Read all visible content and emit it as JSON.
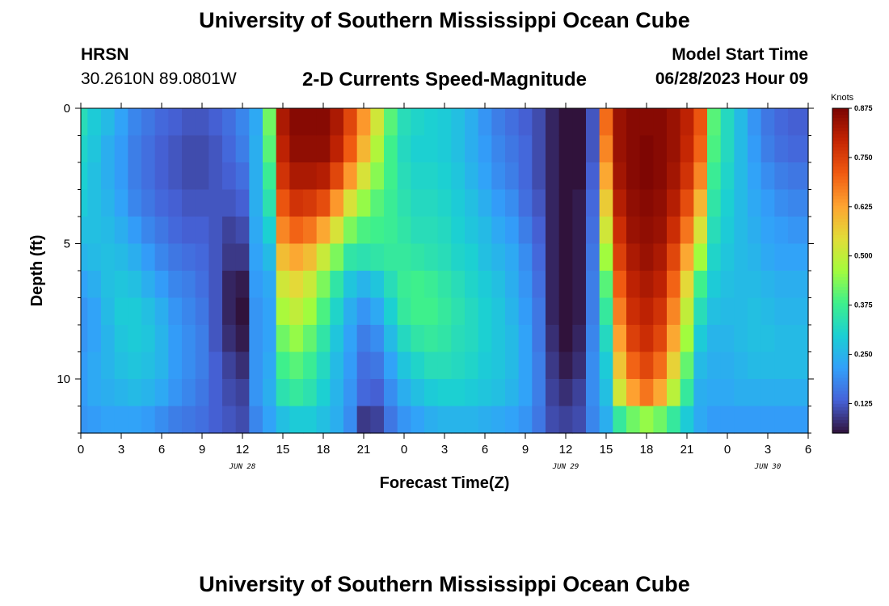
{
  "header": {
    "title": "University of Southern Mississippi Ocean Cube",
    "station_id": "HRSN",
    "coordinates": "30.2610N  89.0801W",
    "subtitle": "2-D Currents Speed-Magnitude",
    "model_start_label": "Model Start Time",
    "model_start_value": "06/28/2023 Hour 09"
  },
  "footer": {
    "repeat_title": "University of Southern Mississippi Ocean Cube"
  },
  "chart_data": {
    "type": "heatmap",
    "title": "2-D Currents Speed-Magnitude",
    "xlabel": "Forecast Time(Z)",
    "ylabel": "Depth (ft)",
    "colorbar_label": "Knots",
    "x_range_hours": [
      0,
      54
    ],
    "x_ticks": [
      {
        "hour": 0,
        "label": "0"
      },
      {
        "hour": 3,
        "label": "3"
      },
      {
        "hour": 6,
        "label": "6"
      },
      {
        "hour": 9,
        "label": "9"
      },
      {
        "hour": 12,
        "label": "12"
      },
      {
        "hour": 15,
        "label": "15"
      },
      {
        "hour": 18,
        "label": "18"
      },
      {
        "hour": 21,
        "label": "21"
      },
      {
        "hour": 24,
        "label": "0"
      },
      {
        "hour": 27,
        "label": "3"
      },
      {
        "hour": 30,
        "label": "6"
      },
      {
        "hour": 33,
        "label": "9"
      },
      {
        "hour": 36,
        "label": "12"
      },
      {
        "hour": 39,
        "label": "15"
      },
      {
        "hour": 42,
        "label": "18"
      },
      {
        "hour": 45,
        "label": "21"
      },
      {
        "hour": 48,
        "label": "0"
      },
      {
        "hour": 51,
        "label": "3"
      },
      {
        "hour": 54,
        "label": "6"
      }
    ],
    "date_labels": [
      {
        "hour": 12,
        "label": "JUN 28"
      },
      {
        "hour": 36,
        "label": "JUN 29"
      },
      {
        "hour": 51,
        "label": "JUN 30"
      }
    ],
    "y_range": [
      0,
      12
    ],
    "y_ticks": [
      0,
      5,
      10
    ],
    "colorbar": {
      "min": 0.05,
      "max": 0.875,
      "ticks": [
        0.125,
        0.25,
        0.375,
        0.5,
        0.625,
        0.75,
        0.875
      ],
      "tick_labels": [
        "0.125",
        "0.250",
        "0.375",
        "0.500",
        "0.625",
        "0.750",
        "0.875"
      ]
    },
    "columns_hours": [
      0,
      1,
      2,
      3,
      4,
      5,
      6,
      7,
      8,
      9,
      10,
      11,
      12,
      13,
      14,
      15,
      16,
      17,
      18,
      19,
      20,
      21,
      22,
      23,
      24,
      25,
      26,
      27,
      28,
      29,
      30,
      31,
      32,
      33,
      34,
      35,
      36,
      37,
      38,
      39,
      40,
      41,
      42,
      43,
      44,
      45,
      46,
      47,
      48,
      49,
      50,
      51,
      52,
      53,
      54
    ],
    "depth_levels_ft": [
      0.5,
      1.5,
      2.5,
      3.5,
      4.5,
      5.5,
      6.5,
      7.5,
      8.5,
      9.5,
      10.5,
      11.5
    ],
    "values": [
      [
        0.33,
        0.29,
        0.26,
        0.22,
        0.18,
        0.16,
        0.14,
        0.13,
        0.12,
        0.12,
        0.13,
        0.15,
        0.18,
        0.23,
        0.42,
        0.82,
        0.86,
        0.86,
        0.86,
        0.82,
        0.74,
        0.64,
        0.52,
        0.4,
        0.33,
        0.31,
        0.3,
        0.29,
        0.27,
        0.24,
        0.2,
        0.17,
        0.15,
        0.13,
        0.11,
        0.07,
        0.03,
        0.05,
        0.12,
        0.69,
        0.84,
        0.86,
        0.86,
        0.86,
        0.84,
        0.8,
        0.72,
        0.4,
        0.32,
        0.26,
        0.2,
        0.16,
        0.14,
        0.13,
        0.13
      ],
      [
        0.31,
        0.28,
        0.24,
        0.21,
        0.17,
        0.15,
        0.13,
        0.12,
        0.11,
        0.11,
        0.12,
        0.14,
        0.17,
        0.24,
        0.4,
        0.8,
        0.85,
        0.85,
        0.85,
        0.8,
        0.71,
        0.6,
        0.48,
        0.38,
        0.32,
        0.3,
        0.3,
        0.29,
        0.27,
        0.24,
        0.21,
        0.18,
        0.16,
        0.14,
        0.11,
        0.07,
        0.03,
        0.05,
        0.12,
        0.66,
        0.84,
        0.86,
        0.87,
        0.86,
        0.84,
        0.79,
        0.7,
        0.39,
        0.32,
        0.26,
        0.21,
        0.17,
        0.15,
        0.14,
        0.14
      ],
      [
        0.3,
        0.27,
        0.24,
        0.21,
        0.17,
        0.15,
        0.13,
        0.12,
        0.11,
        0.11,
        0.12,
        0.13,
        0.15,
        0.24,
        0.37,
        0.77,
        0.82,
        0.82,
        0.81,
        0.74,
        0.64,
        0.53,
        0.44,
        0.38,
        0.33,
        0.31,
        0.31,
        0.3,
        0.28,
        0.25,
        0.22,
        0.19,
        0.17,
        0.14,
        0.11,
        0.07,
        0.04,
        0.05,
        0.13,
        0.62,
        0.83,
        0.86,
        0.87,
        0.86,
        0.83,
        0.77,
        0.66,
        0.37,
        0.31,
        0.26,
        0.22,
        0.19,
        0.17,
        0.16,
        0.16
      ],
      [
        0.29,
        0.27,
        0.25,
        0.22,
        0.18,
        0.16,
        0.14,
        0.13,
        0.12,
        0.12,
        0.12,
        0.12,
        0.13,
        0.24,
        0.34,
        0.72,
        0.77,
        0.76,
        0.73,
        0.64,
        0.53,
        0.45,
        0.4,
        0.37,
        0.34,
        0.32,
        0.32,
        0.31,
        0.29,
        0.27,
        0.24,
        0.21,
        0.19,
        0.15,
        0.12,
        0.07,
        0.04,
        0.06,
        0.14,
        0.57,
        0.81,
        0.85,
        0.86,
        0.85,
        0.81,
        0.73,
        0.6,
        0.35,
        0.3,
        0.26,
        0.23,
        0.21,
        0.19,
        0.18,
        0.18
      ],
      [
        0.27,
        0.27,
        0.26,
        0.24,
        0.21,
        0.18,
        0.16,
        0.14,
        0.13,
        0.13,
        0.12,
        0.1,
        0.11,
        0.23,
        0.3,
        0.66,
        0.7,
        0.68,
        0.62,
        0.53,
        0.43,
        0.39,
        0.38,
        0.37,
        0.35,
        0.33,
        0.33,
        0.32,
        0.3,
        0.28,
        0.26,
        0.23,
        0.21,
        0.17,
        0.13,
        0.07,
        0.04,
        0.06,
        0.15,
        0.52,
        0.78,
        0.84,
        0.85,
        0.84,
        0.78,
        0.68,
        0.53,
        0.33,
        0.29,
        0.26,
        0.24,
        0.22,
        0.21,
        0.2,
        0.2
      ],
      [
        0.25,
        0.26,
        0.27,
        0.26,
        0.24,
        0.21,
        0.18,
        0.16,
        0.15,
        0.14,
        0.12,
        0.09,
        0.09,
        0.22,
        0.26,
        0.59,
        0.62,
        0.59,
        0.51,
        0.43,
        0.35,
        0.34,
        0.35,
        0.36,
        0.36,
        0.35,
        0.34,
        0.33,
        0.31,
        0.3,
        0.27,
        0.25,
        0.23,
        0.19,
        0.14,
        0.07,
        0.04,
        0.06,
        0.16,
        0.46,
        0.75,
        0.82,
        0.84,
        0.82,
        0.74,
        0.62,
        0.46,
        0.31,
        0.28,
        0.26,
        0.25,
        0.23,
        0.22,
        0.22,
        0.22
      ],
      [
        0.22,
        0.24,
        0.27,
        0.28,
        0.27,
        0.24,
        0.21,
        0.18,
        0.17,
        0.15,
        0.12,
        0.07,
        0.06,
        0.21,
        0.23,
        0.52,
        0.55,
        0.51,
        0.43,
        0.35,
        0.28,
        0.25,
        0.28,
        0.33,
        0.37,
        0.38,
        0.37,
        0.35,
        0.33,
        0.31,
        0.29,
        0.27,
        0.24,
        0.2,
        0.15,
        0.07,
        0.04,
        0.06,
        0.17,
        0.4,
        0.71,
        0.8,
        0.82,
        0.8,
        0.7,
        0.55,
        0.38,
        0.29,
        0.27,
        0.26,
        0.26,
        0.25,
        0.24,
        0.24,
        0.24
      ],
      [
        0.2,
        0.22,
        0.26,
        0.29,
        0.29,
        0.27,
        0.24,
        0.2,
        0.18,
        0.16,
        0.12,
        0.07,
        0.05,
        0.2,
        0.22,
        0.47,
        0.5,
        0.46,
        0.39,
        0.31,
        0.24,
        0.2,
        0.23,
        0.3,
        0.36,
        0.38,
        0.38,
        0.36,
        0.34,
        0.32,
        0.3,
        0.28,
        0.25,
        0.21,
        0.16,
        0.07,
        0.04,
        0.06,
        0.17,
        0.36,
        0.67,
        0.78,
        0.8,
        0.77,
        0.66,
        0.5,
        0.33,
        0.27,
        0.26,
        0.26,
        0.27,
        0.26,
        0.25,
        0.25,
        0.25
      ],
      [
        0.2,
        0.22,
        0.25,
        0.28,
        0.29,
        0.28,
        0.25,
        0.21,
        0.19,
        0.17,
        0.12,
        0.08,
        0.06,
        0.2,
        0.22,
        0.42,
        0.45,
        0.41,
        0.35,
        0.28,
        0.22,
        0.17,
        0.19,
        0.26,
        0.32,
        0.35,
        0.36,
        0.35,
        0.33,
        0.32,
        0.3,
        0.28,
        0.26,
        0.22,
        0.16,
        0.08,
        0.05,
        0.07,
        0.18,
        0.32,
        0.63,
        0.75,
        0.78,
        0.74,
        0.62,
        0.46,
        0.29,
        0.25,
        0.25,
        0.26,
        0.27,
        0.27,
        0.26,
        0.26,
        0.26
      ],
      [
        0.21,
        0.23,
        0.25,
        0.27,
        0.28,
        0.27,
        0.25,
        0.21,
        0.19,
        0.17,
        0.13,
        0.1,
        0.08,
        0.2,
        0.23,
        0.38,
        0.4,
        0.37,
        0.32,
        0.26,
        0.21,
        0.15,
        0.16,
        0.22,
        0.28,
        0.31,
        0.33,
        0.33,
        0.32,
        0.31,
        0.29,
        0.28,
        0.26,
        0.22,
        0.17,
        0.09,
        0.06,
        0.08,
        0.19,
        0.29,
        0.58,
        0.7,
        0.74,
        0.69,
        0.56,
        0.41,
        0.26,
        0.24,
        0.24,
        0.25,
        0.26,
        0.26,
        0.26,
        0.26,
        0.26
      ],
      [
        0.21,
        0.23,
        0.24,
        0.25,
        0.26,
        0.25,
        0.23,
        0.2,
        0.18,
        0.16,
        0.13,
        0.11,
        0.1,
        0.2,
        0.24,
        0.34,
        0.36,
        0.34,
        0.3,
        0.25,
        0.2,
        0.14,
        0.13,
        0.19,
        0.24,
        0.27,
        0.29,
        0.3,
        0.3,
        0.29,
        0.28,
        0.27,
        0.25,
        0.22,
        0.17,
        0.1,
        0.08,
        0.1,
        0.19,
        0.27,
        0.52,
        0.63,
        0.68,
        0.62,
        0.49,
        0.36,
        0.24,
        0.23,
        0.23,
        0.24,
        0.24,
        0.24,
        0.24,
        0.24,
        0.24
      ],
      [
        0.2,
        0.21,
        0.22,
        0.22,
        0.22,
        0.21,
        0.19,
        0.17,
        0.16,
        0.15,
        0.13,
        0.12,
        0.11,
        0.18,
        0.22,
        0.27,
        0.29,
        0.29,
        0.27,
        0.24,
        0.19,
        0.09,
        0.1,
        0.16,
        0.2,
        0.22,
        0.24,
        0.25,
        0.25,
        0.25,
        0.24,
        0.23,
        0.22,
        0.2,
        0.16,
        0.11,
        0.1,
        0.11,
        0.18,
        0.24,
        0.36,
        0.42,
        0.45,
        0.42,
        0.36,
        0.29,
        0.23,
        0.21,
        0.21,
        0.21,
        0.21,
        0.21,
        0.21,
        0.21,
        0.21
      ]
    ]
  }
}
